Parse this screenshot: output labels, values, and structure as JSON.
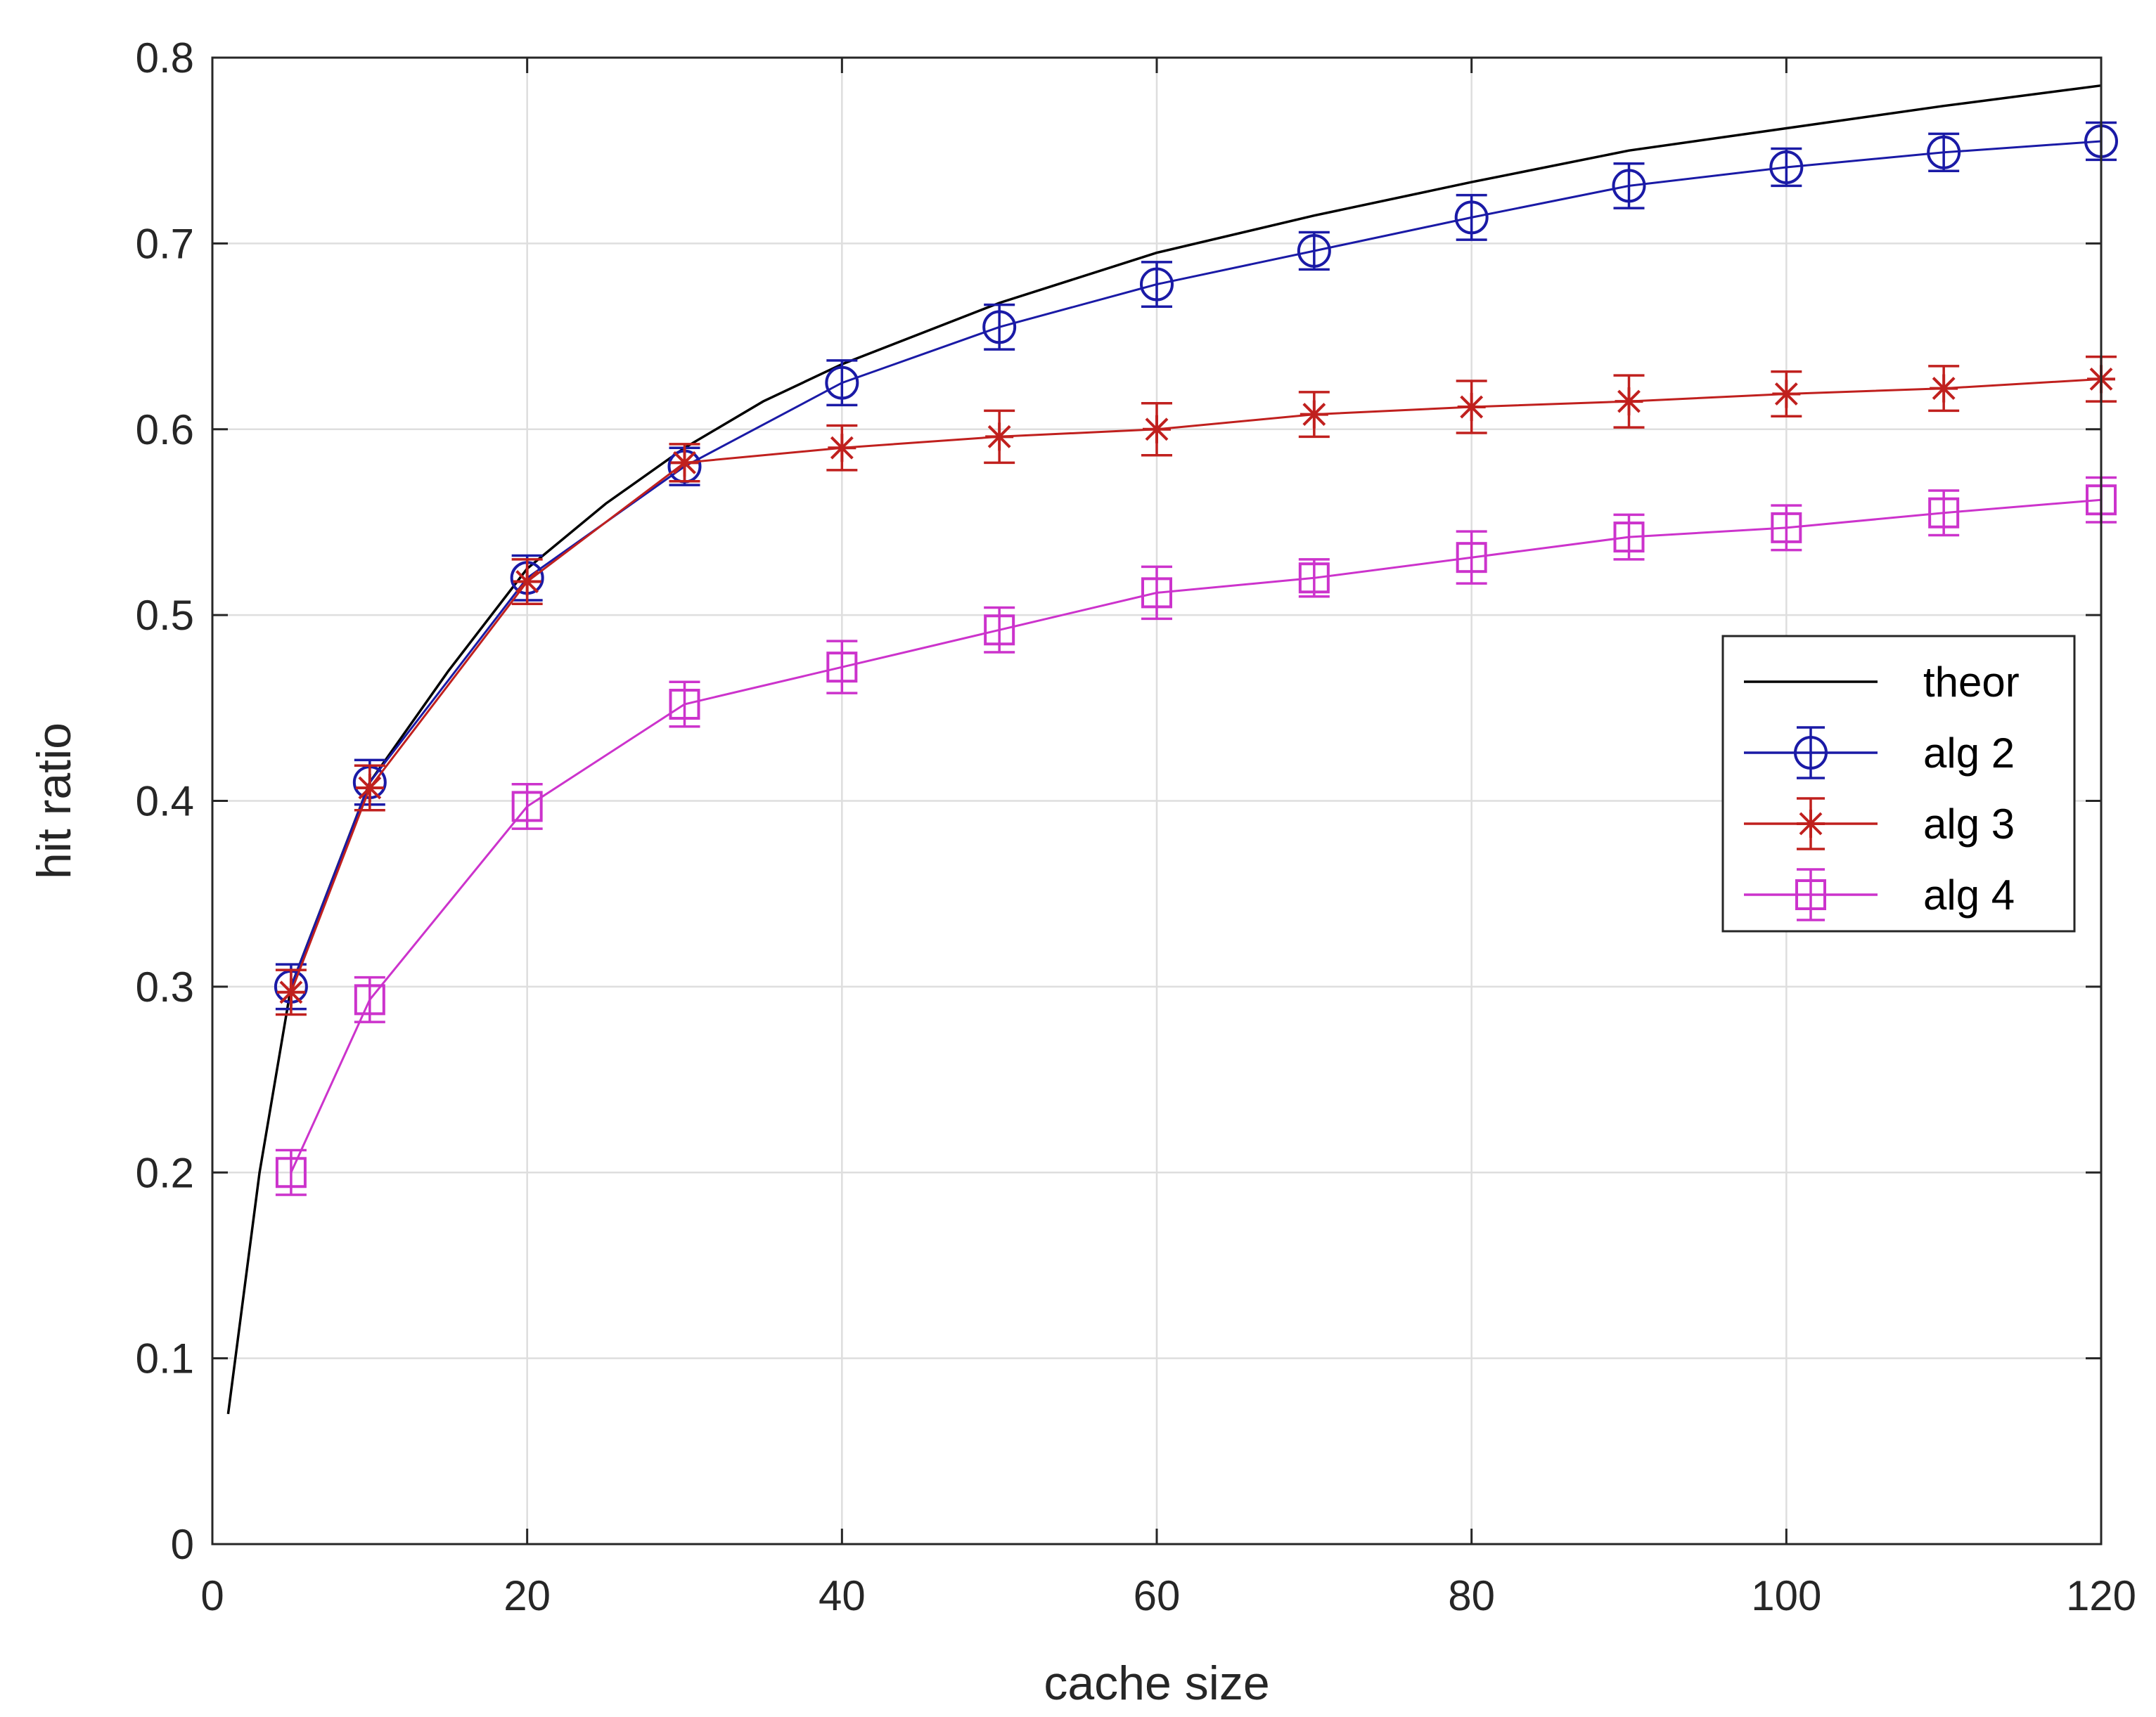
{
  "chart_data": {
    "type": "line",
    "xlabel": "cache size",
    "ylabel": "hit ratio",
    "xlim": [
      0,
      120
    ],
    "ylim": [
      0,
      0.8
    ],
    "xticks": [
      0,
      20,
      40,
      60,
      80,
      100,
      120
    ],
    "yticks": [
      0,
      0.1,
      0.2,
      0.3,
      0.4,
      0.5,
      0.6,
      0.7,
      0.8
    ],
    "xtick_labels": [
      "0",
      "20",
      "40",
      "60",
      "80",
      "100",
      "120"
    ],
    "ytick_labels": [
      "0",
      "0.1",
      "0.2",
      "0.3",
      "0.4",
      "0.5",
      "0.6",
      "0.7",
      "0.8"
    ],
    "grid": true,
    "legend_position": "right",
    "series": [
      {
        "name": "theor",
        "color": "#000000",
        "marker": "none",
        "x": [
          1,
          3,
          5,
          10,
          15,
          20,
          25,
          30,
          35,
          40,
          50,
          60,
          70,
          80,
          90,
          100,
          110,
          120
        ],
        "y": [
          0.07,
          0.2,
          0.3,
          0.41,
          0.47,
          0.525,
          0.56,
          0.59,
          0.615,
          0.635,
          0.668,
          0.695,
          0.715,
          0.733,
          0.75,
          0.762,
          0.774,
          0.785
        ]
      },
      {
        "name": "alg 2",
        "color": "#1a1aa6",
        "marker": "circle",
        "x": [
          5,
          10,
          20,
          30,
          40,
          50,
          60,
          70,
          80,
          90,
          100,
          110,
          120
        ],
        "y": [
          0.3,
          0.41,
          0.52,
          0.58,
          0.625,
          0.655,
          0.678,
          0.696,
          0.714,
          0.731,
          0.741,
          0.749,
          0.755
        ],
        "err": [
          0.012,
          0.012,
          0.012,
          0.01,
          0.012,
          0.012,
          0.012,
          0.01,
          0.012,
          0.012,
          0.01,
          0.01,
          0.01
        ]
      },
      {
        "name": "alg 3",
        "color": "#c0201e",
        "marker": "star",
        "x": [
          5,
          10,
          20,
          30,
          40,
          50,
          60,
          70,
          80,
          90,
          100,
          110,
          120
        ],
        "y": [
          0.297,
          0.407,
          0.518,
          0.582,
          0.59,
          0.596,
          0.6,
          0.608,
          0.612,
          0.615,
          0.619,
          0.622,
          0.627
        ],
        "err": [
          0.012,
          0.012,
          0.012,
          0.01,
          0.012,
          0.014,
          0.014,
          0.012,
          0.014,
          0.014,
          0.012,
          0.012,
          0.012
        ]
      },
      {
        "name": "alg 4",
        "color": "#cc33cc",
        "marker": "square",
        "x": [
          5,
          10,
          20,
          30,
          40,
          50,
          60,
          70,
          80,
          90,
          100,
          110,
          120
        ],
        "y": [
          0.2,
          0.293,
          0.397,
          0.452,
          0.472,
          0.492,
          0.512,
          0.52,
          0.531,
          0.542,
          0.547,
          0.555,
          0.562
        ],
        "err": [
          0.012,
          0.012,
          0.012,
          0.012,
          0.014,
          0.012,
          0.014,
          0.01,
          0.014,
          0.012,
          0.012,
          0.012,
          0.012
        ]
      }
    ]
  }
}
